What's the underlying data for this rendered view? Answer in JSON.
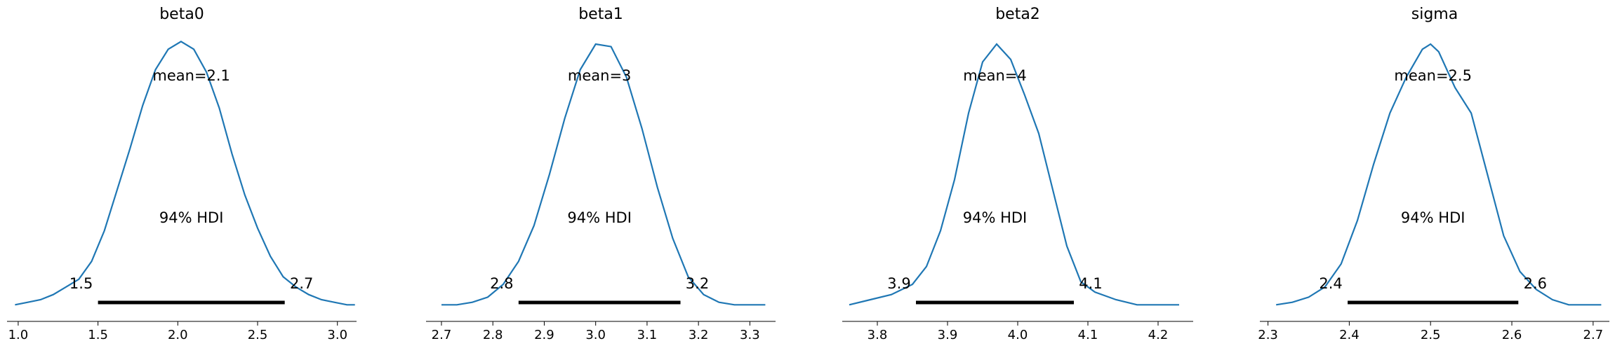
{
  "chart_data": [
    {
      "type": "line",
      "title": "beta0",
      "mean_label": "mean=2.1",
      "hdi_label": "94% HDI",
      "hdi_low_label": "1.5",
      "hdi_high_label": "2.7",
      "hdi": [
        1.5,
        2.67
      ],
      "xlim": [
        0.93,
        3.12
      ],
      "ylim": [
        0,
        1.06
      ],
      "xticks": [
        1.0,
        1.5,
        2.0,
        2.5,
        3.0
      ],
      "xtick_labels": [
        "1.0",
        "1.5",
        "2.0",
        "2.5",
        "3.0"
      ],
      "x": [
        0.98,
        1.06,
        1.14,
        1.22,
        1.3,
        1.38,
        1.46,
        1.54,
        1.62,
        1.7,
        1.78,
        1.86,
        1.94,
        2.02,
        2.1,
        2.18,
        2.26,
        2.34,
        2.42,
        2.5,
        2.58,
        2.66,
        2.74,
        2.82,
        2.9,
        2.98,
        3.06,
        3.11
      ],
      "y": [
        0.01,
        0.02,
        0.03,
        0.05,
        0.08,
        0.11,
        0.18,
        0.3,
        0.46,
        0.62,
        0.79,
        0.93,
        1.01,
        1.04,
        1.01,
        0.92,
        0.78,
        0.6,
        0.44,
        0.31,
        0.2,
        0.12,
        0.08,
        0.05,
        0.03,
        0.02,
        0.01,
        0.01
      ]
    },
    {
      "type": "line",
      "title": "beta1",
      "mean_label": "mean=3",
      "hdi_label": "94% HDI",
      "hdi_low_label": "2.8",
      "hdi_high_label": "3.2",
      "hdi": [
        2.85,
        3.165
      ],
      "xlim": [
        2.67,
        3.35
      ],
      "ylim": [
        0,
        1.06
      ],
      "xticks": [
        2.7,
        2.8,
        2.9,
        3.0,
        3.1,
        3.2,
        3.3
      ],
      "xtick_labels": [
        "2.7",
        "2.8",
        "2.9",
        "3.0",
        "3.1",
        "3.2",
        "3.3"
      ],
      "x": [
        2.7,
        2.73,
        2.76,
        2.79,
        2.82,
        2.85,
        2.88,
        2.91,
        2.94,
        2.97,
        3.0,
        3.03,
        3.06,
        3.09,
        3.12,
        3.15,
        3.18,
        3.21,
        3.24,
        3.27,
        3.3,
        3.33
      ],
      "y": [
        0.01,
        0.01,
        0.02,
        0.04,
        0.09,
        0.18,
        0.32,
        0.52,
        0.74,
        0.93,
        1.03,
        1.02,
        0.9,
        0.7,
        0.47,
        0.27,
        0.12,
        0.05,
        0.02,
        0.01,
        0.01,
        0.01
      ]
    },
    {
      "type": "line",
      "title": "beta2",
      "mean_label": "mean=4",
      "hdi_label": "94% HDI",
      "hdi_low_label": "3.9",
      "hdi_high_label": "4.1",
      "hdi": [
        3.855,
        4.08
      ],
      "xlim": [
        3.75,
        4.25
      ],
      "ylim": [
        0,
        1.06
      ],
      "xticks": [
        3.8,
        3.9,
        4.0,
        4.1,
        4.2
      ],
      "xtick_labels": [
        "3.8",
        "3.9",
        "4.0",
        "4.1",
        "4.2"
      ],
      "x": [
        3.76,
        3.79,
        3.82,
        3.85,
        3.87,
        3.89,
        3.91,
        3.93,
        3.95,
        3.97,
        3.99,
        4.01,
        4.03,
        4.05,
        4.07,
        4.09,
        4.11,
        4.14,
        4.17,
        4.2,
        4.23
      ],
      "y": [
        0.01,
        0.03,
        0.05,
        0.09,
        0.16,
        0.3,
        0.5,
        0.76,
        0.96,
        1.03,
        0.97,
        0.83,
        0.68,
        0.46,
        0.24,
        0.1,
        0.06,
        0.03,
        0.01,
        0.01,
        0.01
      ]
    },
    {
      "type": "line",
      "title": "sigma",
      "mean_label": "mean=2.5",
      "hdi_label": "94% HDI",
      "hdi_low_label": "2.4",
      "hdi_high_label": "2.6",
      "hdi": [
        2.398,
        2.608
      ],
      "xlim": [
        2.29,
        2.72
      ],
      "ylim": [
        0,
        1.06
      ],
      "xticks": [
        2.3,
        2.4,
        2.5,
        2.6,
        2.7
      ],
      "xtick_labels": [
        "2.3",
        "2.4",
        "2.5",
        "2.6",
        "2.7"
      ],
      "x": [
        2.31,
        2.33,
        2.35,
        2.37,
        2.39,
        2.41,
        2.43,
        2.45,
        2.47,
        2.49,
        2.5,
        2.51,
        2.53,
        2.55,
        2.57,
        2.59,
        2.61,
        2.63,
        2.65,
        2.67,
        2.69,
        2.71
      ],
      "y": [
        0.01,
        0.02,
        0.04,
        0.08,
        0.17,
        0.34,
        0.56,
        0.76,
        0.9,
        1.01,
        1.03,
        1.0,
        0.86,
        0.76,
        0.52,
        0.28,
        0.14,
        0.07,
        0.03,
        0.01,
        0.01,
        0.01
      ]
    }
  ]
}
